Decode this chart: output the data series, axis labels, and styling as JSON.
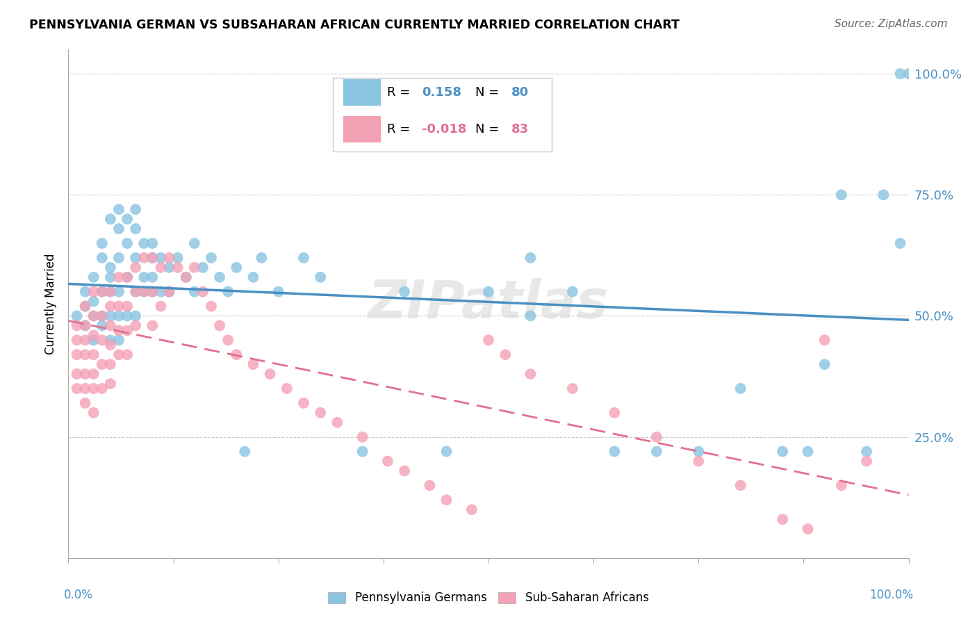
{
  "title": "PENNSYLVANIA GERMAN VS SUBSAHARAN AFRICAN CURRENTLY MARRIED CORRELATION CHART",
  "source": "Source: ZipAtlas.com",
  "ylabel": "Currently Married",
  "r_blue": 0.158,
  "n_blue": 80,
  "r_pink": -0.018,
  "n_pink": 83,
  "blue_color": "#89c4e1",
  "pink_color": "#f4a0b5",
  "blue_line_color": "#4a90c4",
  "pink_line_color": "#e07090",
  "watermark": "ZIPatlas",
  "blue_x": [
    0.01,
    0.02,
    0.02,
    0.02,
    0.03,
    0.03,
    0.03,
    0.03,
    0.04,
    0.04,
    0.04,
    0.04,
    0.04,
    0.05,
    0.05,
    0.05,
    0.05,
    0.05,
    0.05,
    0.06,
    0.06,
    0.06,
    0.06,
    0.06,
    0.06,
    0.07,
    0.07,
    0.07,
    0.07,
    0.08,
    0.08,
    0.08,
    0.08,
    0.08,
    0.09,
    0.09,
    0.09,
    0.1,
    0.1,
    0.1,
    0.1,
    0.11,
    0.11,
    0.12,
    0.12,
    0.13,
    0.14,
    0.15,
    0.15,
    0.16,
    0.17,
    0.18,
    0.19,
    0.2,
    0.21,
    0.22,
    0.23,
    0.25,
    0.28,
    0.3,
    0.35,
    0.4,
    0.45,
    0.5,
    0.55,
    0.55,
    0.6,
    0.65,
    0.7,
    0.75,
    0.8,
    0.85,
    0.88,
    0.9,
    0.92,
    0.95,
    0.97,
    0.99,
    0.99,
    1.0
  ],
  "blue_y": [
    0.5,
    0.52,
    0.48,
    0.55,
    0.58,
    0.5,
    0.45,
    0.53,
    0.62,
    0.55,
    0.48,
    0.65,
    0.5,
    0.6,
    0.55,
    0.7,
    0.5,
    0.45,
    0.58,
    0.68,
    0.62,
    0.55,
    0.5,
    0.72,
    0.45,
    0.7,
    0.65,
    0.58,
    0.5,
    0.68,
    0.62,
    0.55,
    0.72,
    0.5,
    0.65,
    0.58,
    0.55,
    0.62,
    0.55,
    0.65,
    0.58,
    0.62,
    0.55,
    0.6,
    0.55,
    0.62,
    0.58,
    0.65,
    0.55,
    0.6,
    0.62,
    0.58,
    0.55,
    0.6,
    0.22,
    0.58,
    0.62,
    0.55,
    0.62,
    0.58,
    0.22,
    0.55,
    0.22,
    0.55,
    0.5,
    0.62,
    0.55,
    0.22,
    0.22,
    0.22,
    0.35,
    0.22,
    0.22,
    0.4,
    0.75,
    0.22,
    0.75,
    0.65,
    1.0,
    1.0
  ],
  "pink_x": [
    0.01,
    0.01,
    0.01,
    0.01,
    0.01,
    0.02,
    0.02,
    0.02,
    0.02,
    0.02,
    0.02,
    0.02,
    0.03,
    0.03,
    0.03,
    0.03,
    0.03,
    0.03,
    0.03,
    0.04,
    0.04,
    0.04,
    0.04,
    0.04,
    0.05,
    0.05,
    0.05,
    0.05,
    0.05,
    0.05,
    0.06,
    0.06,
    0.06,
    0.06,
    0.07,
    0.07,
    0.07,
    0.07,
    0.08,
    0.08,
    0.08,
    0.09,
    0.09,
    0.1,
    0.1,
    0.1,
    0.11,
    0.11,
    0.12,
    0.12,
    0.13,
    0.14,
    0.15,
    0.16,
    0.17,
    0.18,
    0.19,
    0.2,
    0.22,
    0.24,
    0.26,
    0.28,
    0.3,
    0.32,
    0.35,
    0.38,
    0.4,
    0.43,
    0.45,
    0.48,
    0.5,
    0.52,
    0.55,
    0.6,
    0.65,
    0.7,
    0.75,
    0.8,
    0.85,
    0.88,
    0.9,
    0.92,
    0.95
  ],
  "pink_y": [
    0.48,
    0.45,
    0.42,
    0.38,
    0.35,
    0.52,
    0.48,
    0.45,
    0.42,
    0.38,
    0.35,
    0.32,
    0.55,
    0.5,
    0.46,
    0.42,
    0.38,
    0.35,
    0.3,
    0.55,
    0.5,
    0.45,
    0.4,
    0.35,
    0.55,
    0.52,
    0.48,
    0.44,
    0.4,
    0.36,
    0.58,
    0.52,
    0.47,
    0.42,
    0.58,
    0.52,
    0.47,
    0.42,
    0.6,
    0.55,
    0.48,
    0.62,
    0.55,
    0.62,
    0.55,
    0.48,
    0.6,
    0.52,
    0.62,
    0.55,
    0.6,
    0.58,
    0.6,
    0.55,
    0.52,
    0.48,
    0.45,
    0.42,
    0.4,
    0.38,
    0.35,
    0.32,
    0.3,
    0.28,
    0.25,
    0.2,
    0.18,
    0.15,
    0.12,
    0.1,
    0.45,
    0.42,
    0.38,
    0.35,
    0.3,
    0.25,
    0.2,
    0.15,
    0.08,
    0.06,
    0.45,
    0.15,
    0.2
  ]
}
